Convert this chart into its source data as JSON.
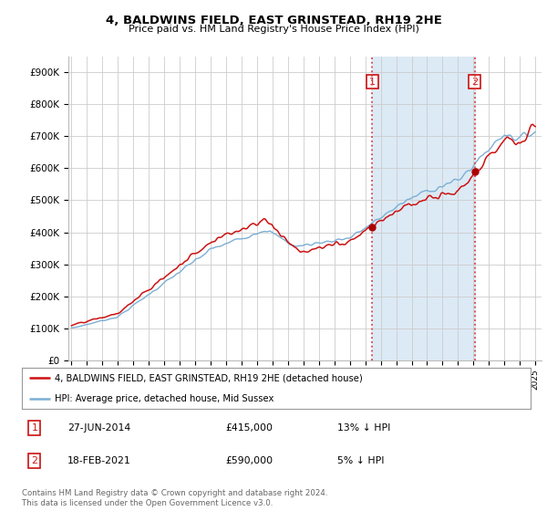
{
  "title": "4, BALDWINS FIELD, EAST GRINSTEAD, RH19 2HE",
  "subtitle": "Price paid vs. HM Land Registry's House Price Index (HPI)",
  "ylim": [
    0,
    950000
  ],
  "yticks": [
    0,
    100000,
    200000,
    300000,
    400000,
    500000,
    600000,
    700000,
    800000,
    900000
  ],
  "ytick_labels": [
    "£0",
    "£100K",
    "£200K",
    "£300K",
    "£400K",
    "£500K",
    "£600K",
    "£700K",
    "£800K",
    "£900K"
  ],
  "hpi_color": "#7bafd4",
  "hpi_fill_color": "#dceaf5",
  "price_color": "#cc1111",
  "dot_color": "#aa0000",
  "vline_color": "#dd4444",
  "t_sale1": 2014.458,
  "t_sale2": 2021.083,
  "sale1_price": 415000,
  "sale2_price": 590000,
  "legend_line1": "4, BALDWINS FIELD, EAST GRINSTEAD, RH19 2HE (detached house)",
  "legend_line2": "HPI: Average price, detached house, Mid Sussex",
  "footer": "Contains HM Land Registry data © Crown copyright and database right 2024.\nThis data is licensed under the Open Government Licence v3.0.",
  "background_color": "#ffffff",
  "grid_color": "#cccccc",
  "start_year": 1995,
  "end_year": 2025
}
